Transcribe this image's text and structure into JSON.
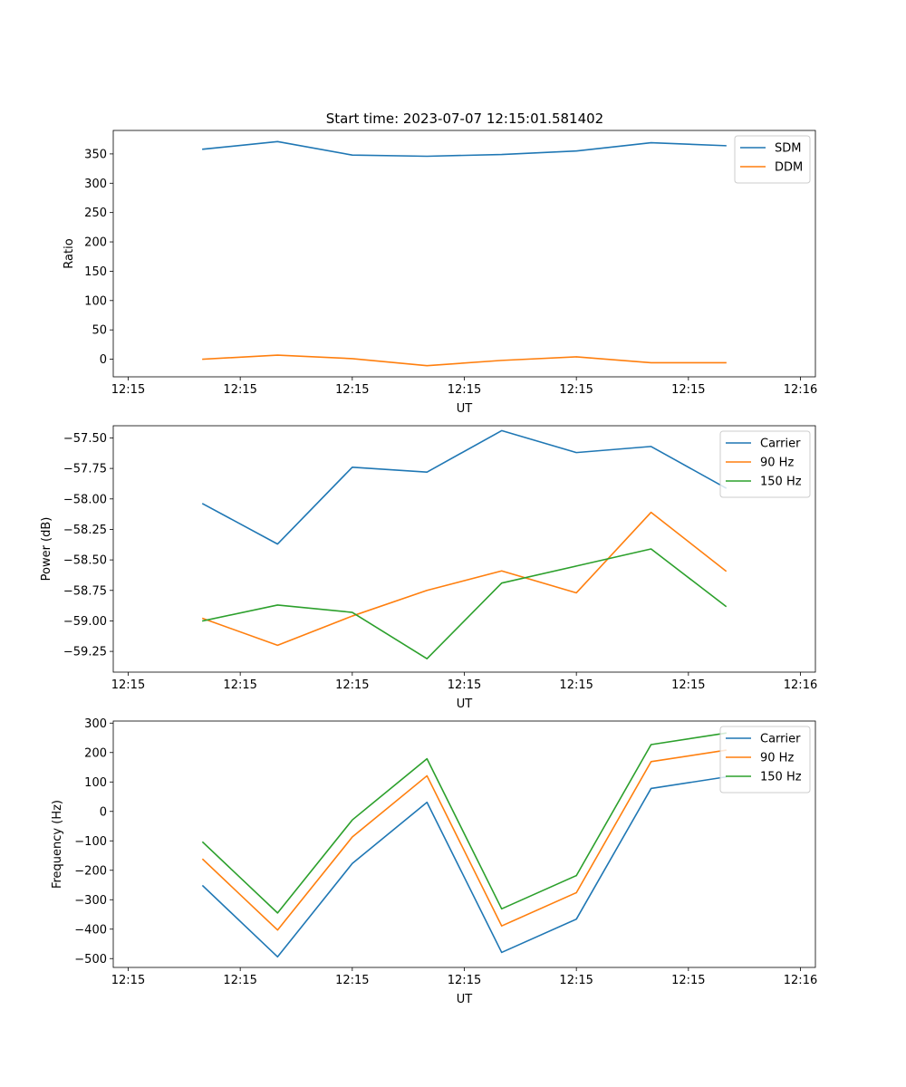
{
  "figure_title": "Start time: 2023-07-07 12:15:01.581402",
  "chart_data": [
    {
      "type": "line",
      "title": "Start time: 2023-07-07 12:15:01.581402",
      "xlabel": "UT",
      "ylabel": "Ratio",
      "x": [
        0.5,
        1.0,
        1.5,
        2.0,
        2.5,
        3.0,
        3.5,
        4.0
      ],
      "xlim": [
        -0.1,
        4.6
      ],
      "xticks": [
        0,
        0.75,
        1.5,
        2.25,
        3.0,
        3.75,
        4.5
      ],
      "xtick_labels": [
        "12:15",
        "12:15",
        "12:15",
        "12:15",
        "12:15",
        "12:15",
        "12:16"
      ],
      "ylim": [
        -30,
        390
      ],
      "yticks": [
        0,
        50,
        100,
        150,
        200,
        250,
        300,
        350
      ],
      "ytick_labels": [
        "0",
        "50",
        "100",
        "150",
        "200",
        "250",
        "300",
        "350"
      ],
      "legend_position": "top-right",
      "series": [
        {
          "name": "SDM",
          "color": "#1f77b4",
          "values": [
            358,
            371,
            348,
            346,
            349,
            355,
            369,
            364
          ]
        },
        {
          "name": "DDM",
          "color": "#ff7f0e",
          "values": [
            0,
            7,
            1,
            -11,
            -2,
            4,
            -6,
            -6
          ]
        }
      ]
    },
    {
      "type": "line",
      "title": "",
      "xlabel": "UT",
      "ylabel": "Power (dB)",
      "x": [
        0.5,
        1.0,
        1.5,
        2.0,
        2.5,
        3.0,
        3.5,
        4.0
      ],
      "xlim": [
        -0.1,
        4.6
      ],
      "xticks": [
        0,
        0.75,
        1.5,
        2.25,
        3.0,
        3.75,
        4.5
      ],
      "xtick_labels": [
        "12:15",
        "12:15",
        "12:15",
        "12:15",
        "12:15",
        "12:15",
        "12:16"
      ],
      "ylim": [
        -59.42,
        -57.4
      ],
      "yticks": [
        -59.25,
        -59.0,
        -58.75,
        -58.5,
        -58.25,
        -58.0,
        -57.75,
        -57.5
      ],
      "ytick_labels": [
        "−59.25",
        "−59.00",
        "−58.75",
        "−58.50",
        "−58.25",
        "−58.00",
        "−57.75",
        "−57.50"
      ],
      "legend_position": "top-right",
      "series": [
        {
          "name": "Carrier",
          "color": "#1f77b4",
          "values": [
            -58.04,
            -58.37,
            -57.74,
            -57.78,
            -57.44,
            -57.62,
            -57.57,
            -57.91
          ]
        },
        {
          "name": "90 Hz",
          "color": "#ff7f0e",
          "values": [
            -58.98,
            -59.2,
            -58.96,
            -58.75,
            -58.59,
            -58.77,
            -58.11,
            -58.59
          ]
        },
        {
          "name": "150 Hz",
          "color": "#2ca02c",
          "values": [
            -59.0,
            -58.87,
            -58.93,
            -59.31,
            -58.69,
            -58.55,
            -58.41,
            -58.88
          ]
        }
      ]
    },
    {
      "type": "line",
      "title": "",
      "xlabel": "UT",
      "ylabel": "Frequency (Hz)",
      "x": [
        0.5,
        1.0,
        1.5,
        2.0,
        2.5,
        3.0,
        3.5,
        4.0
      ],
      "xlim": [
        -0.1,
        4.6
      ],
      "xticks": [
        0,
        0.75,
        1.5,
        2.25,
        3.0,
        3.75,
        4.5
      ],
      "xtick_labels": [
        "12:15",
        "12:15",
        "12:15",
        "12:15",
        "12:15",
        "12:15",
        "12:16"
      ],
      "ylim": [
        -530,
        307
      ],
      "yticks": [
        -500,
        -400,
        -300,
        -200,
        -100,
        0,
        100,
        200,
        300
      ],
      "ytick_labels": [
        "−500",
        "−400",
        "−300",
        "−200",
        "−100",
        "0",
        "100",
        "200",
        "300"
      ],
      "legend_position": "top-right",
      "series": [
        {
          "name": "Carrier",
          "color": "#1f77b4",
          "values": [
            -253,
            -494,
            -177,
            31,
            -479,
            -366,
            78,
            117
          ]
        },
        {
          "name": "90 Hz",
          "color": "#ff7f0e",
          "values": [
            -163,
            -403,
            -87,
            121,
            -389,
            -276,
            169,
            208
          ]
        },
        {
          "name": "150 Hz",
          "color": "#2ca02c",
          "values": [
            -105,
            -345,
            -29,
            179,
            -331,
            -218,
            227,
            266
          ]
        }
      ]
    }
  ]
}
